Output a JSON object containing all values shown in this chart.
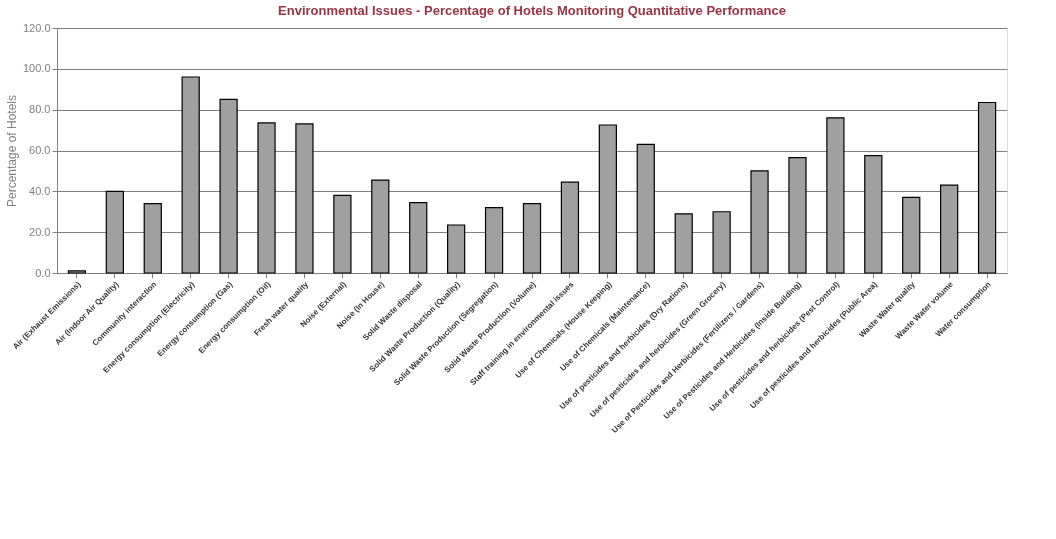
{
  "chart_data": {
    "type": "bar",
    "title": "Environmental Issues - Percentage of Hotels Monitoring Quantitative Performance",
    "ylabel": "Percentage of Hotels",
    "categories": [
      "Air (Exhaust Emissions)",
      "Air (Indoor Air Quality)",
      "Community interaction",
      "Energy consumption (Electricity)",
      "Energy consumption (Gas)",
      "Energy consumption (Oil)",
      "Fresh water quality",
      "Noise (External)",
      "Noise (In House)",
      "Solid Waste disposal",
      "Solid Waste Production (Quality)",
      "Solid Waste Production (Segregation)",
      "Solid Waste Production (Volume)",
      "Staff training in environmental issues",
      "Use of Chemicals (House Keeping)",
      "Use of Chemicals (Maintenance)",
      "Use of pesticides and herbicides (Dry Rations)",
      "Use of pesticides and herbicides (Green Grocery)",
      "Use of Pesticides and Herbicides (Fertilizers / Gardens)",
      "Use of Pesticides and Herbicides (Inside Building)",
      "Use of pesticides and herbicides (Pest Control)",
      "Use of pesticides and herbicides (Public Area)",
      "Waste Water quality",
      "Waste Water volume",
      "Water consumption"
    ],
    "values": [
      1,
      40,
      34,
      96,
      85,
      73.5,
      73,
      38,
      45.5,
      34.5,
      23.5,
      32,
      34,
      44.5,
      72.5,
      63,
      29,
      30,
      50,
      56.5,
      76,
      57.5,
      37,
      43,
      83.5
    ],
    "color": "#a0a0a0",
    "ylim": [
      0,
      120
    ],
    "yticks": [
      {
        "value": 0,
        "label": "0.0"
      },
      {
        "value": 20,
        "label": "20.0"
      },
      {
        "value": 40,
        "label": "40.0"
      },
      {
        "value": 60,
        "label": "60.0"
      },
      {
        "value": 80,
        "label": "80.0"
      },
      {
        "value": 100,
        "label": "100.0"
      },
      {
        "value": 120,
        "label": "120.0"
      }
    ],
    "grid": "y"
  }
}
